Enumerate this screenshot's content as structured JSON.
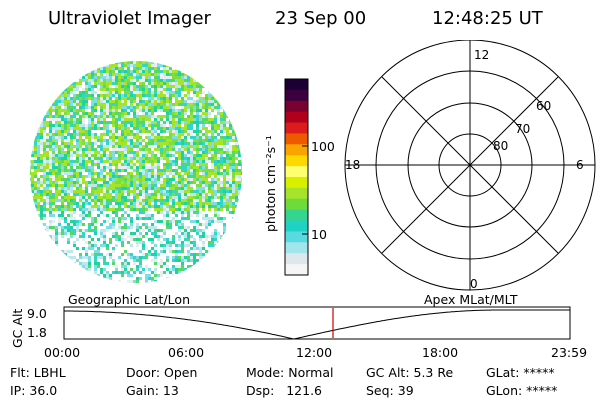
{
  "header": {
    "title": "Ultraviolet Imager",
    "date": "23 Sep 00",
    "time": "12:48:25 UT"
  },
  "colorbar": {
    "unit_label": "photon cm⁻²s⁻¹",
    "ticks": [
      "100",
      "10"
    ],
    "colors": [
      "#1a0033",
      "#3a0040",
      "#7a0030",
      "#b0001c",
      "#dc1c1c",
      "#ee5a00",
      "#f9a400",
      "#ffd800",
      "#ffff70",
      "#d8f000",
      "#a6e42c",
      "#6edb3a",
      "#33d590",
      "#1fd2c4",
      "#58dae0",
      "#a2e6ec",
      "#dde8ec",
      "#f5f5f5"
    ]
  },
  "polar_grid": {
    "mlt_labels": [
      "12",
      "18",
      "6",
      "0"
    ],
    "lat_labels": [
      "60",
      "70",
      "80"
    ]
  },
  "alt_plot": {
    "label_left": "Geographic Lat/Lon",
    "label_right": "Apex MLat/MLT",
    "axis_label": "GC Alt",
    "y_ticks": [
      "9.0",
      "1.8"
    ],
    "x_ticks": [
      "00:00",
      "06:00",
      "12:00",
      "18:00",
      "23:59"
    ],
    "marker_color": "#cc0000"
  },
  "status": {
    "flt": "Flt: LBHL",
    "ip": "IP: 36.0",
    "door": "Door: Open",
    "gain": "Gain: 13",
    "mode": "Mode: Normal",
    "dsp": "Dsp:   121.6",
    "gc_alt": "GC Alt: 5.3 Re",
    "seq": "Seq: 39",
    "glat": "GLat: *****",
    "glon": "GLon: *****"
  }
}
